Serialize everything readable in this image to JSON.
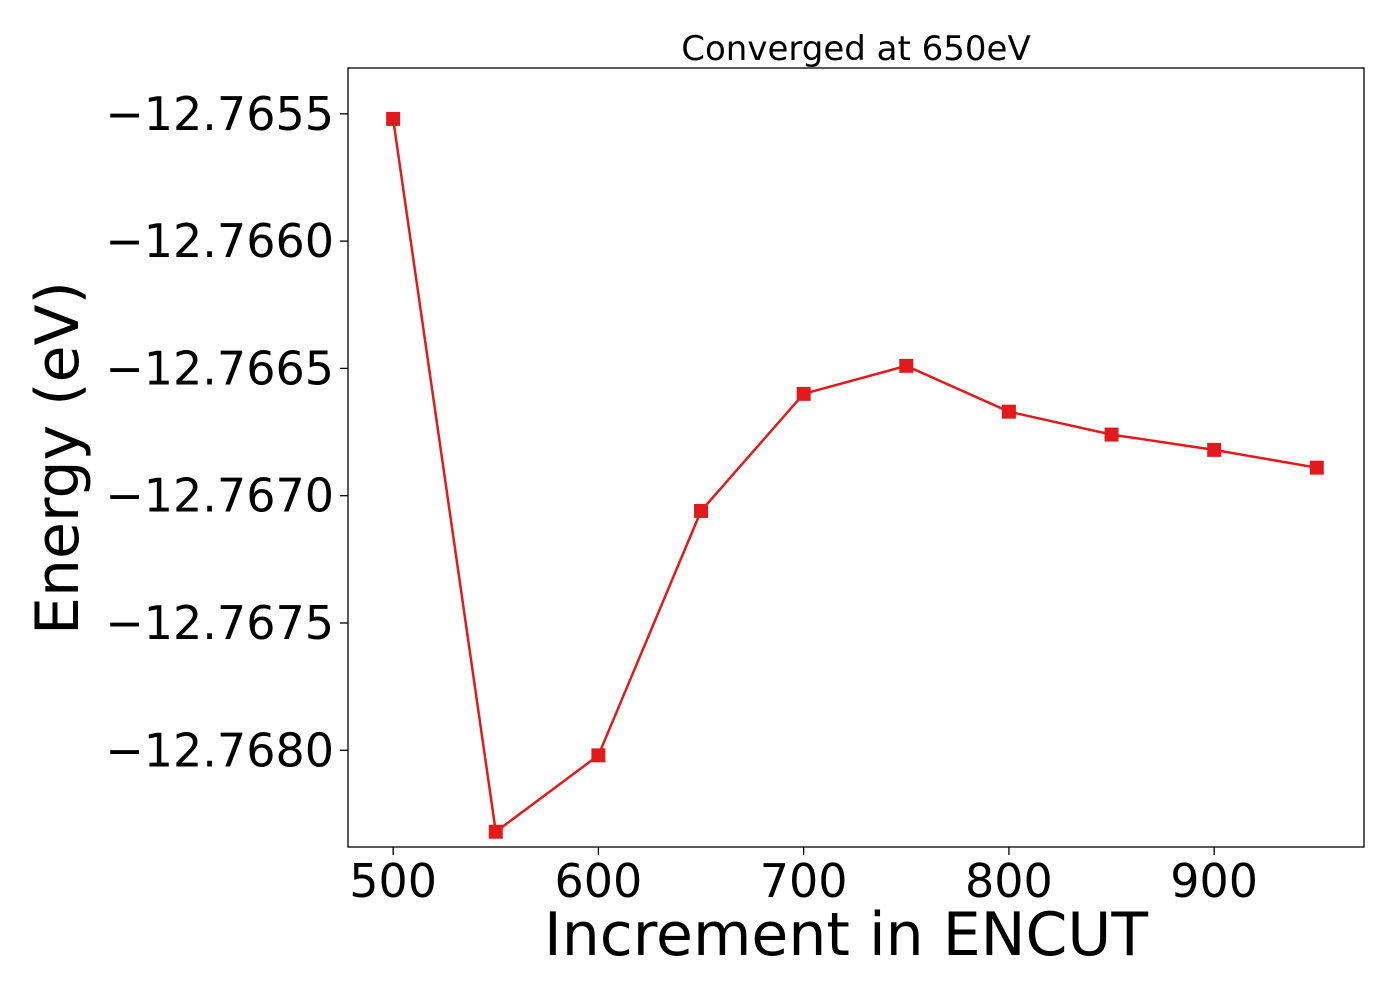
{
  "chart_data": {
    "type": "line",
    "title": "Converged at 650eV",
    "xlabel": "Increment in ENCUT",
    "ylabel": "Energy (eV)",
    "xlim": [
      478,
      973
    ],
    "ylim": [
      -12.76838,
      -12.76532
    ],
    "x_ticks": [
      500,
      600,
      700,
      800,
      900
    ],
    "x_tick_labels": [
      "500",
      "600",
      "700",
      "800",
      "900"
    ],
    "y_ticks": [
      -12.7655,
      -12.766,
      -12.7665,
      -12.767,
      -12.7675,
      -12.768
    ],
    "y_tick_labels": [
      "−12.7655",
      "−12.7660",
      "−12.7665",
      "−12.7670",
      "−12.7675",
      "−12.7680"
    ],
    "grid": false,
    "series": [
      {
        "color": "#e31a1c",
        "marker": "square",
        "x": [
          500,
          550,
          600,
          650,
          700,
          750,
          800,
          850,
          900,
          950
        ],
        "y": [
          -12.76552,
          -12.76832,
          -12.76802,
          -12.76706,
          -12.7666,
          -12.76649,
          -12.76667,
          -12.76676,
          -12.76682,
          -12.76689
        ]
      }
    ]
  }
}
